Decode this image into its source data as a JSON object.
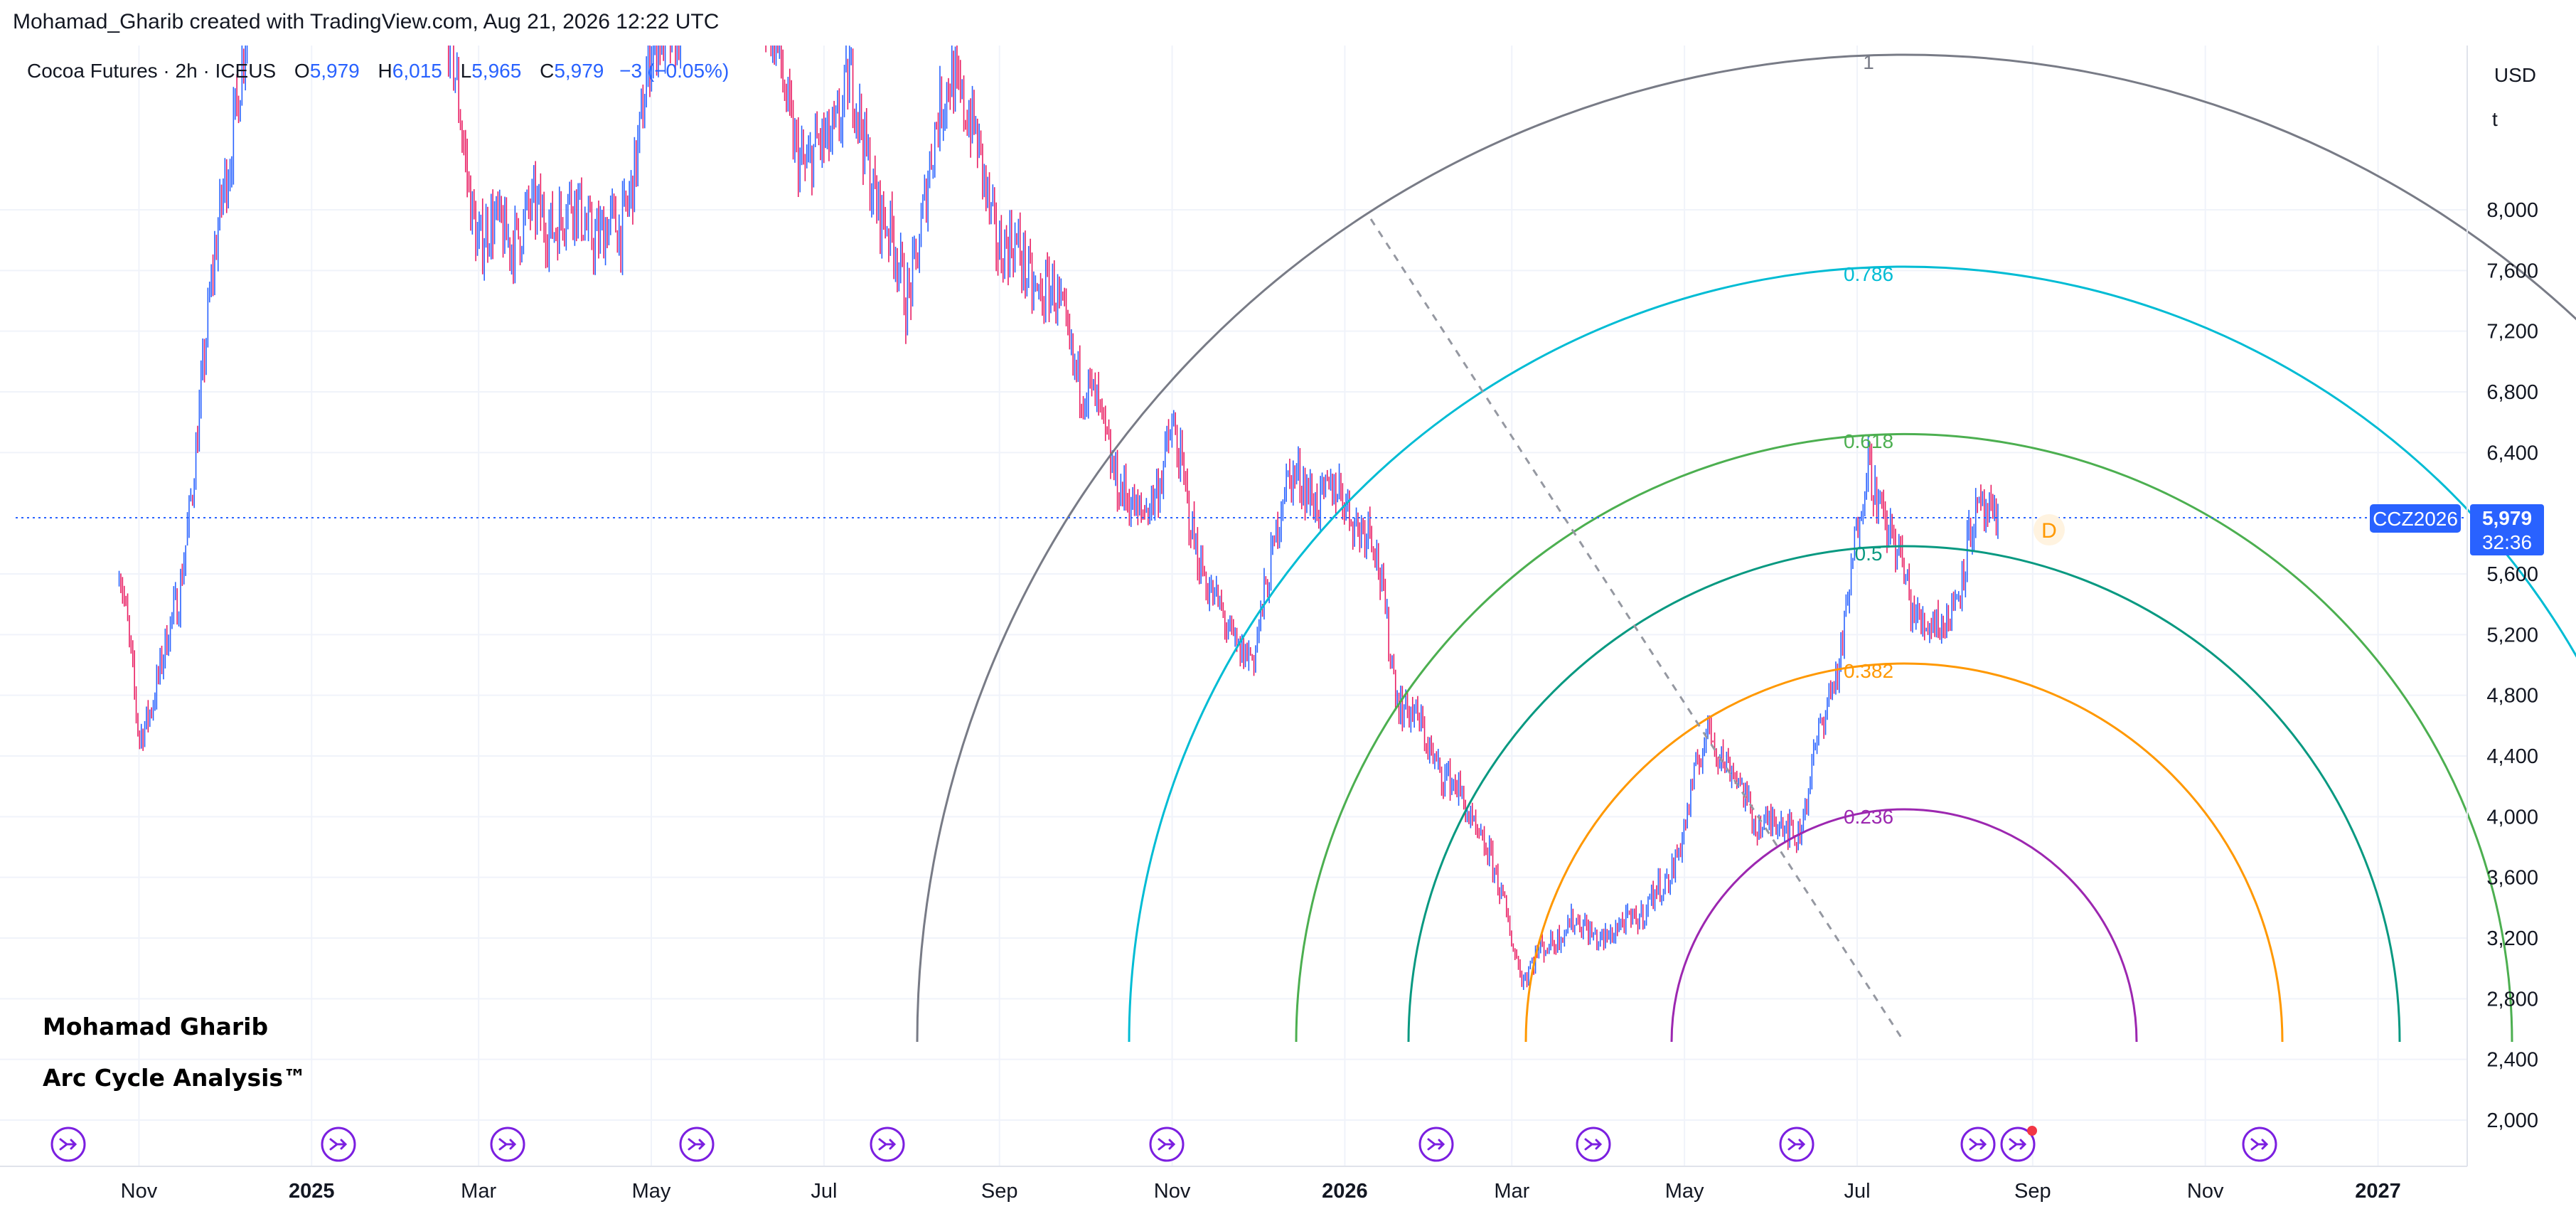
{
  "header": {
    "attribution": "Mohamad_Gharib created with TradingView.com, Aug 21, 2026 12:22 UTC"
  },
  "legend": {
    "symbol": "Cocoa Futures · 2h · ICEUS",
    "open_label": "O",
    "open": "5,979",
    "high_label": "H",
    "high": "6,015",
    "low_label": "L",
    "low": "5,965",
    "close_label": "C",
    "close": "5,979",
    "change": "−3 (−0.05%)"
  },
  "price_axis": {
    "currency": "USD",
    "unit": "t",
    "ticks": [
      "8,000",
      "7,600",
      "7,200",
      "6,800",
      "6,400",
      "5,600",
      "5,200",
      "4,800",
      "4,400",
      "4,000",
      "3,600",
      "3,200",
      "2,800",
      "2,400",
      "2,000"
    ]
  },
  "time_axis": {
    "labels": [
      {
        "text": "Nov",
        "bold": false
      },
      {
        "text": "2025",
        "bold": true
      },
      {
        "text": "Mar",
        "bold": false
      },
      {
        "text": "May",
        "bold": false
      },
      {
        "text": "Jul",
        "bold": false
      },
      {
        "text": "Sep",
        "bold": false
      },
      {
        "text": "Nov",
        "bold": false
      },
      {
        "text": "2026",
        "bold": true
      },
      {
        "text": "Mar",
        "bold": false
      },
      {
        "text": "May",
        "bold": false
      },
      {
        "text": "Jul",
        "bold": false
      },
      {
        "text": "Sep",
        "bold": false
      },
      {
        "text": "Nov",
        "bold": false
      },
      {
        "text": "2027",
        "bold": true
      }
    ]
  },
  "last_price": {
    "symbol_tag": "CCZ2026",
    "price": "5,979",
    "countdown": "32:36",
    "color": "#2962ff"
  },
  "annotations": {
    "author": "Mohamad Gharib",
    "title": "Arc Cycle Analysis™",
    "marker_d": "D"
  },
  "colors": {
    "up_candle": "#2962ff",
    "down_candle": "#e91e63",
    "grid": "#f0f3fa",
    "event_icon": "#7b1fe0"
  },
  "chart_data": {
    "type": "candlestick",
    "symbol": "CCZ2026",
    "timeframe": "2h",
    "y_range": [
      1800,
      8500
    ],
    "x_range": [
      "2024-10",
      "2027-01"
    ],
    "last_price": 5979,
    "approx_path": [
      {
        "date": "2024-10-25",
        "price": 5700
      },
      {
        "date": "2024-11-01",
        "price": 4500
      },
      {
        "date": "2024-11-15",
        "price": 5400
      },
      {
        "date": "2024-12-01",
        "price": 8200
      },
      {
        "date": "2024-12-20",
        "price": 10500
      },
      {
        "date": "2025-02-15",
        "price": 9500
      },
      {
        "date": "2025-03-01",
        "price": 7800
      },
      {
        "date": "2025-04-01",
        "price": 8000
      },
      {
        "date": "2025-04-20",
        "price": 7800
      },
      {
        "date": "2025-05-01",
        "price": 9000
      },
      {
        "date": "2025-06-01",
        "price": 10000
      },
      {
        "date": "2025-06-25",
        "price": 8200
      },
      {
        "date": "2025-07-10",
        "price": 8800
      },
      {
        "date": "2025-07-30",
        "price": 7400
      },
      {
        "date": "2025-08-15",
        "price": 9000
      },
      {
        "date": "2025-09-01",
        "price": 7800
      },
      {
        "date": "2025-09-20",
        "price": 7400
      },
      {
        "date": "2025-10-10",
        "price": 6400
      },
      {
        "date": "2025-10-20",
        "price": 5900
      },
      {
        "date": "2025-11-01",
        "price": 6500
      },
      {
        "date": "2025-11-15",
        "price": 5400
      },
      {
        "date": "2025-11-30",
        "price": 5000
      },
      {
        "date": "2025-12-10",
        "price": 6200
      },
      {
        "date": "2025-12-30",
        "price": 6100
      },
      {
        "date": "2026-01-10",
        "price": 5900
      },
      {
        "date": "2026-01-20",
        "price": 4800
      },
      {
        "date": "2026-02-05",
        "price": 4300
      },
      {
        "date": "2026-02-20",
        "price": 3800
      },
      {
        "date": "2026-03-05",
        "price": 2950
      },
      {
        "date": "2026-03-20",
        "price": 3300
      },
      {
        "date": "2026-04-05",
        "price": 3200
      },
      {
        "date": "2026-04-25",
        "price": 3550
      },
      {
        "date": "2026-05-10",
        "price": 4600
      },
      {
        "date": "2026-05-25",
        "price": 4000
      },
      {
        "date": "2026-06-10",
        "price": 3900
      },
      {
        "date": "2026-06-25",
        "price": 5100
      },
      {
        "date": "2026-07-05",
        "price": 6350
      },
      {
        "date": "2026-07-20",
        "price": 5400
      },
      {
        "date": "2026-08-01",
        "price": 5200
      },
      {
        "date": "2026-08-10",
        "price": 5900
      },
      {
        "date": "2026-08-20",
        "price": 5979
      }
    ],
    "fib_arcs": [
      {
        "level": "1",
        "color": "#787b86"
      },
      {
        "level": "0.786",
        "color": "#00bcd4"
      },
      {
        "level": "0.618",
        "color": "#4caf50"
      },
      {
        "level": "0.5",
        "color": "#089981"
      },
      {
        "level": "0.382",
        "color": "#ff9800"
      },
      {
        "level": "0.236",
        "color": "#9c27b0"
      }
    ],
    "event_markers": 12
  }
}
